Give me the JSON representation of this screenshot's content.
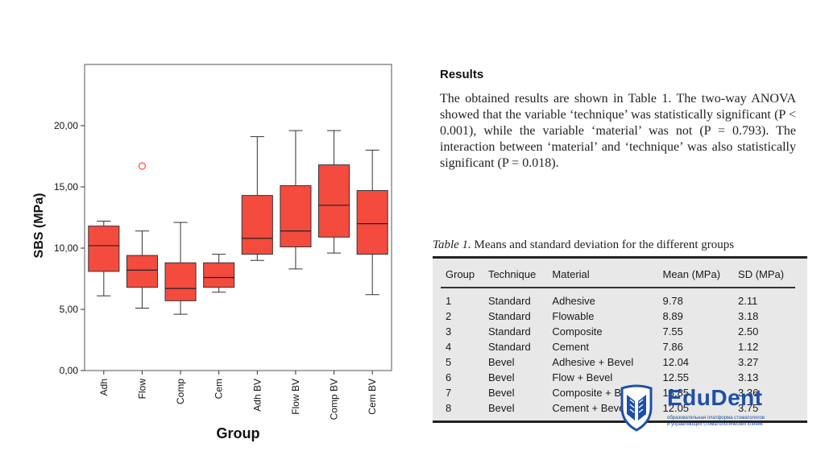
{
  "chart_data": {
    "type": "box",
    "xlabel": "Group",
    "ylabel": "SBS (MPa)",
    "ylim": [
      0,
      25
    ],
    "yticks": [
      "0,00",
      "5,00",
      "10,00",
      "15,00",
      "20,00"
    ],
    "grid": false,
    "box_color": "#f44b3f",
    "categories": [
      "Adh",
      "Flow",
      "Comp",
      "Cem",
      "Adh BV",
      "Flow BV",
      "Comp BV",
      "Cem BV"
    ],
    "series": [
      {
        "min": 6.1,
        "q1": 8.1,
        "median": 10.2,
        "q3": 11.8,
        "max": 12.2
      },
      {
        "min": 5.1,
        "q1": 6.8,
        "median": 8.2,
        "q3": 9.4,
        "max": 11.4,
        "outliers": [
          16.7
        ]
      },
      {
        "min": 4.6,
        "q1": 5.7,
        "median": 6.7,
        "q3": 8.8,
        "max": 12.1
      },
      {
        "min": 6.4,
        "q1": 6.8,
        "median": 7.6,
        "q3": 8.8,
        "max": 9.5
      },
      {
        "min": 9.0,
        "q1": 9.5,
        "median": 10.8,
        "q3": 14.3,
        "max": 19.1
      },
      {
        "min": 8.3,
        "q1": 10.1,
        "median": 11.4,
        "q3": 15.1,
        "max": 19.6
      },
      {
        "min": 9.6,
        "q1": 10.9,
        "median": 13.5,
        "q3": 16.8,
        "max": 19.6
      },
      {
        "min": 6.2,
        "q1": 9.5,
        "median": 12.0,
        "q3": 14.7,
        "max": 18.0
      }
    ]
  },
  "results": {
    "heading": "Results",
    "text": "The obtained results are shown in Table 1. The two-way ANOVA showed that the variable ‘technique’ was statistically significant (P < 0.001), while the variable ‘material’ was not (P = 0.793). The interaction between ‘material’ and ‘technique’ was also statistically significant (P = 0.018)."
  },
  "table": {
    "caption_label": "Table 1.",
    "caption_text": "Means and standard deviation for the different groups",
    "headers": [
      "Group",
      "Technique",
      "Material",
      "Mean (MPa)",
      "SD (MPa)"
    ],
    "rows": [
      [
        "1",
        "Standard",
        "Adhesive",
        "9.78",
        "2.11"
      ],
      [
        "2",
        "Standard",
        "Flowable",
        "8.89",
        "3.18"
      ],
      [
        "3",
        "Standard",
        "Composite",
        "7.55",
        "2.50"
      ],
      [
        "4",
        "Standard",
        "Cement",
        "7.86",
        "1.12"
      ],
      [
        "5",
        "Bevel",
        "Adhesive + Bevel",
        "12.04",
        "3.27"
      ],
      [
        "6",
        "Bevel",
        "Flow + Bevel",
        "12.55",
        "3.13"
      ],
      [
        "7",
        "Bevel",
        "Composite + Bevel",
        "13.85",
        "3.36"
      ],
      [
        "8",
        "Bevel",
        "Cement + Bevel",
        "12.05",
        "3.75"
      ]
    ]
  },
  "logo": {
    "name": "EduDent",
    "tagline_1": "образовательная платформа стоматологов",
    "tagline_2": "и управляющих стоматологических клиник",
    "color": "#1e4fa8"
  }
}
